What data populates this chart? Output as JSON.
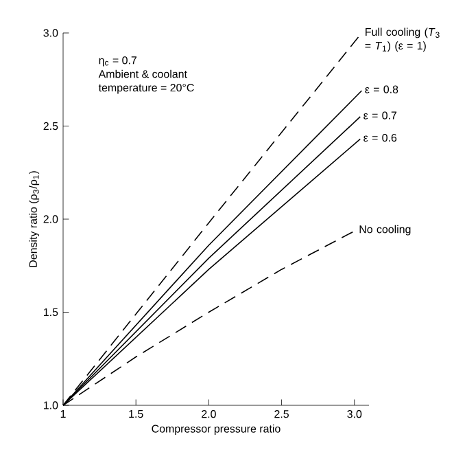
{
  "chart_data": {
    "type": "line",
    "xlabel": "Compressor pressure ratio",
    "ylabel": "Density ratio (ρ$_{3}$/ρ$_{1}$)",
    "annotations": [
      "η$_{c}$ = 0.7",
      "Ambient & coolant",
      "temperature = 20°C"
    ],
    "xlim": [
      1,
      3.1
    ],
    "ylim": [
      1,
      3
    ],
    "xticks": [
      1,
      1.5,
      {
        "value": 2,
        "label": "2.0"
      },
      2.5,
      {
        "value": 3,
        "label": "3.0"
      }
    ],
    "yticks": [
      {
        "value": 1,
        "label": "1.0"
      },
      1.5,
      {
        "value": 2,
        "label": "2.0"
      },
      2.5,
      {
        "value": 3,
        "label": "3.0"
      }
    ],
    "grid": false,
    "legend": false,
    "marker": "none",
    "series": [
      {
        "name": "Full cooling (*T*$_{3}$ = *T*$_{1}$) (ε = 1)",
        "color": "#000000",
        "line_style": "dashed",
        "x": [
          1,
          2,
          3.05
        ],
        "values": [
          1,
          1.98,
          3.0
        ]
      },
      {
        "name": "ε = 0.8",
        "color": "#000000",
        "line_style": "solid",
        "x": [
          1,
          2,
          3.05
        ],
        "values": [
          1,
          1.86,
          2.69
        ]
      },
      {
        "name": "ε = 0.7",
        "color": "#000000",
        "line_style": "solid",
        "x": [
          1,
          2,
          3.04
        ],
        "values": [
          1,
          1.79,
          2.55
        ]
      },
      {
        "name": "ε = 0.6",
        "color": "#000000",
        "line_style": "solid",
        "x": [
          1,
          2,
          3.04
        ],
        "values": [
          1,
          1.73,
          2.43
        ]
      },
      {
        "name": "No cooling",
        "color": "#000000",
        "line_style": "dashed",
        "x": [
          1,
          1.5,
          2,
          2.5,
          3.01
        ],
        "values": [
          1,
          1.26,
          1.5,
          1.73,
          1.94
        ]
      }
    ]
  }
}
